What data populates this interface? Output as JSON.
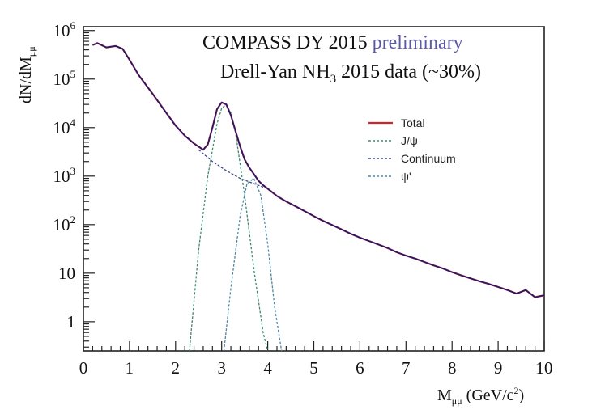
{
  "chart_data": {
    "type": "line",
    "x_axis": {
      "label_main": "M",
      "label_sub": "μμ",
      "label_units": " (GeV/c",
      "label_units_sup": "2",
      "label_units_close": ")",
      "range": [
        0,
        10
      ],
      "ticks": [
        0,
        1,
        2,
        3,
        4,
        5,
        6,
        7,
        8,
        9,
        10
      ],
      "tick_labels": [
        "0",
        "1",
        "2",
        "3",
        "4",
        "5",
        "6",
        "7",
        "8",
        "9",
        "10"
      ]
    },
    "y_axis": {
      "label_main": "dN/dM",
      "label_sub": "μμ",
      "scale": "log",
      "range": [
        0.25,
        1200000
      ],
      "ticks": [
        1,
        10,
        100,
        1000,
        10000,
        100000,
        1000000
      ],
      "tick_labels": [
        {
          "base": "1",
          "exp": ""
        },
        {
          "base": "10",
          "exp": ""
        },
        {
          "base": "10",
          "exp": "2"
        },
        {
          "base": "10",
          "exp": "3"
        },
        {
          "base": "10",
          "exp": "4"
        },
        {
          "base": "10",
          "exp": "5"
        },
        {
          "base": "10",
          "exp": "6"
        }
      ]
    },
    "annotations": {
      "line1_main": "COMPASS DY 2015 ",
      "line1_prelim": "preliminary",
      "line2_pre": "Drell-Yan NH",
      "line2_sub": "3",
      "line2_post": " 2015 data (~30%)"
    },
    "legend": {
      "placement": "top-right",
      "entries": [
        {
          "label": "Total",
          "color": "#d0262b",
          "style": "solid"
        },
        {
          "label": "J/ψ",
          "color": "#3e8a7a",
          "style": "dashed"
        },
        {
          "label": "Continuum",
          "color": "#3a4a8a",
          "style": "dashed"
        },
        {
          "label": "ψ'",
          "color": "#4a8aa8",
          "style": "dashed"
        }
      ]
    },
    "series": [
      {
        "name": "Data",
        "color": "#1c1c6e",
        "style": "solid",
        "x": [
          0.2,
          0.3,
          0.5,
          0.7,
          0.85,
          1.0,
          1.2,
          1.5,
          1.8,
          2.0,
          2.2,
          2.4,
          2.6,
          2.7,
          2.8,
          2.9,
          3.0,
          3.1,
          3.2,
          3.3,
          3.4,
          3.5,
          3.6,
          3.7,
          3.8,
          3.9,
          4.0,
          4.2,
          4.4,
          4.6,
          4.8,
          5.0,
          5.2,
          5.4,
          5.6,
          5.8,
          6.0,
          6.2,
          6.4,
          6.6,
          6.8,
          7.0,
          7.2,
          7.4,
          7.6,
          7.8,
          8.0,
          8.2,
          8.4,
          8.6,
          8.8,
          9.0,
          9.2,
          9.4,
          9.6,
          9.8,
          10.0
        ],
        "y": [
          500000,
          550000,
          450000,
          480000,
          420000,
          250000,
          120000,
          50000,
          20000,
          11000,
          6800,
          4700,
          3500,
          4500,
          10000,
          24000,
          33000,
          30000,
          18000,
          8500,
          4100,
          2200,
          1500,
          1100,
          800,
          650,
          550,
          390,
          300,
          240,
          190,
          150,
          120,
          98,
          80,
          65,
          54,
          46,
          39,
          33,
          27,
          23,
          20,
          17,
          14.5,
          12.5,
          10.5,
          9,
          7.8,
          6.8,
          6,
          5.2,
          4.5,
          3.8,
          4.5,
          3.2,
          3.5
        ]
      },
      {
        "name": "Total",
        "color": "#d0262b",
        "style": "solid",
        "x": [
          0.2,
          0.3,
          0.5,
          0.7,
          0.85,
          1.0,
          1.2,
          1.5,
          1.8,
          2.0,
          2.2,
          2.4,
          2.6,
          2.7,
          2.8,
          2.9,
          3.0,
          3.1,
          3.2,
          3.3,
          3.4,
          3.5,
          3.6,
          3.7,
          3.8,
          3.9,
          4.0,
          4.2,
          4.4,
          4.6,
          4.8,
          5.0,
          5.2,
          5.4,
          5.6,
          5.8,
          6.0,
          6.2,
          6.4,
          6.6,
          6.8,
          7.0,
          7.2,
          7.4,
          7.6,
          7.8,
          8.0,
          8.2,
          8.4,
          8.6,
          8.8,
          9.0,
          9.2,
          9.4,
          9.6,
          9.8,
          10.0
        ],
        "y": [
          500000,
          550000,
          450000,
          480000,
          420000,
          250000,
          120000,
          50000,
          20000,
          11000,
          6800,
          4700,
          3500,
          4500,
          10000,
          24000,
          33000,
          30000,
          18000,
          8500,
          4100,
          2200,
          1500,
          1100,
          800,
          650,
          550,
          390,
          300,
          240,
          190,
          150,
          120,
          98,
          80,
          65,
          54,
          46,
          39,
          33,
          27,
          23,
          20,
          17,
          14.5,
          12.5,
          10.5,
          9,
          7.8,
          6.8,
          6,
          5.2,
          4.5,
          3.8,
          4.5,
          3.2,
          3.5
        ]
      },
      {
        "name": "J/ψ",
        "color": "#3e8a7a",
        "style": "dashed",
        "x": [
          2.3,
          2.5,
          2.7,
          2.9,
          3.0,
          3.1,
          3.2,
          3.3,
          3.5,
          3.7,
          3.9,
          4.0
        ],
        "y": [
          0.25,
          30,
          1000,
          12000,
          25000,
          30000,
          20000,
          8000,
          400,
          12,
          0.6,
          0.25
        ]
      },
      {
        "name": "Continuum",
        "color": "#3a4a8a",
        "style": "dashed",
        "x": [
          2.5,
          2.8,
          3.1,
          3.4,
          3.7,
          4.0
        ],
        "y": [
          3500,
          2000,
          1300,
          900,
          700,
          550
        ]
      },
      {
        "name": "ψ'",
        "color": "#4a8aa8",
        "style": "dashed",
        "x": [
          3.05,
          3.2,
          3.4,
          3.55,
          3.7,
          3.85,
          4.0,
          4.15,
          4.3
        ],
        "y": [
          0.25,
          5,
          150,
          700,
          900,
          400,
          40,
          2,
          0.25
        ]
      }
    ]
  }
}
